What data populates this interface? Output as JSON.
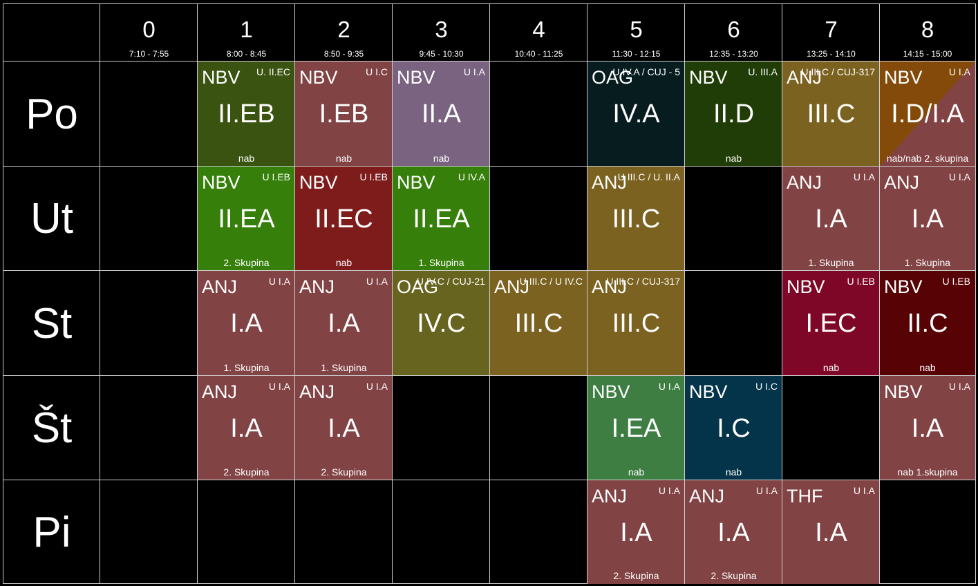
{
  "periods": [
    {
      "num": "0",
      "time": "7:10 - 7:55"
    },
    {
      "num": "1",
      "time": "8:00 - 8:45"
    },
    {
      "num": "2",
      "time": "8:50 - 9:35"
    },
    {
      "num": "3",
      "time": "9:45 - 10:30"
    },
    {
      "num": "4",
      "time": "10:40 - 11:25"
    },
    {
      "num": "5",
      "time": "11:30 - 12:15"
    },
    {
      "num": "6",
      "time": "12:35 - 13:20"
    },
    {
      "num": "7",
      "time": "13:25 - 14:10"
    },
    {
      "num": "8",
      "time": "14:15 - 15:00"
    }
  ],
  "days": [
    {
      "label": "Po",
      "lessons": [
        {
          "period": 1,
          "subject": "NBV",
          "room": "U. II.EC",
          "class": "II.EB",
          "note": "nab",
          "color": "#3a5310"
        },
        {
          "period": 2,
          "subject": "NBV",
          "room": "U I.C",
          "class": "I.EB",
          "note": "nab",
          "color": "#824345"
        },
        {
          "period": 3,
          "subject": "NBV",
          "room": "U I.A",
          "class": "II.A",
          "note": "nab",
          "color": "#7a6380"
        },
        {
          "period": 5,
          "subject": "OAG",
          "room": "U IV.A / CUJ - 5",
          "class": "IV.A",
          "note": "",
          "color": "#061c1f"
        },
        {
          "period": 6,
          "subject": "NBV",
          "room": "U. III.A",
          "class": "II.D",
          "note": "nab",
          "color": "#213d07"
        },
        {
          "period": 7,
          "subject": "ANJ",
          "room": "U III.C / CUJ-317",
          "class": "III.C",
          "note": "",
          "color": "#7b6220"
        },
        {
          "period": 8,
          "subject": "NBV",
          "room": "U I.A",
          "class": "I.D/I.A",
          "note": "nab/nab 2. skupina",
          "color": "#824345",
          "color2": "#834a0a"
        }
      ]
    },
    {
      "label": "Ut",
      "lessons": [
        {
          "period": 1,
          "subject": "NBV",
          "room": "U I.EB",
          "class": "II.EA",
          "note": "2. Skupina",
          "color": "#357f0a"
        },
        {
          "period": 2,
          "subject": "NBV",
          "room": "U I.EB",
          "class": "II.EC",
          "note": "nab",
          "color": "#7e1c1c"
        },
        {
          "period": 3,
          "subject": "NBV",
          "room": "U IV.A",
          "class": "II.EA",
          "note": "1. Skupina",
          "color": "#357f0a"
        },
        {
          "period": 5,
          "subject": "ANJ",
          "room": "U III.C / U. II.A",
          "class": "III.C",
          "note": "",
          "color": "#7b6220"
        },
        {
          "period": 7,
          "subject": "ANJ",
          "room": "U I.A",
          "class": "I.A",
          "note": "1. Skupina",
          "color": "#824345"
        },
        {
          "period": 8,
          "subject": "ANJ",
          "room": "U I.A",
          "class": "I.A",
          "note": "1. Skupina",
          "color": "#824345"
        }
      ]
    },
    {
      "label": "St",
      "lessons": [
        {
          "period": 1,
          "subject": "ANJ",
          "room": "U I.A",
          "class": "I.A",
          "note": "1. Skupina",
          "color": "#824345"
        },
        {
          "period": 2,
          "subject": "ANJ",
          "room": "U I.A",
          "class": "I.A",
          "note": "1. Skupina",
          "color": "#824345"
        },
        {
          "period": 3,
          "subject": "OAG",
          "room": "U IV.C / CUJ-21",
          "class": "IV.C",
          "note": "",
          "color": "#67641f"
        },
        {
          "period": 4,
          "subject": "ANJ",
          "room": "U III.C / U IV.C",
          "class": "III.C",
          "note": "",
          "color": "#7b6220"
        },
        {
          "period": 5,
          "subject": "ANJ",
          "room": "U III.C / CUJ-317",
          "class": "III.C",
          "note": "",
          "color": "#7b6220"
        },
        {
          "period": 7,
          "subject": "NBV",
          "room": "U I.EB",
          "class": "I.EC",
          "note": "nab",
          "color": "#7e0626"
        },
        {
          "period": 8,
          "subject": "NBV",
          "room": "U I.EB",
          "class": "II.C",
          "note": "nab",
          "color": "#570306"
        }
      ]
    },
    {
      "label": "Št",
      "lessons": [
        {
          "period": 1,
          "subject": "ANJ",
          "room": "U I.A",
          "class": "I.A",
          "note": "2. Skupina",
          "color": "#824345"
        },
        {
          "period": 2,
          "subject": "ANJ",
          "room": "U I.A",
          "class": "I.A",
          "note": "2. Skupina",
          "color": "#824345"
        },
        {
          "period": 5,
          "subject": "NBV",
          "room": "U I.A",
          "class": "I.EA",
          "note": "nab",
          "color": "#3e7e43"
        },
        {
          "period": 6,
          "subject": "NBV",
          "room": "U I.C",
          "class": "I.C",
          "note": "nab",
          "color": "#033449"
        },
        {
          "period": 8,
          "subject": "NBV",
          "room": "U I.A",
          "class": "I.A",
          "note": "nab 1.skupina",
          "color": "#824345"
        }
      ]
    },
    {
      "label": "Pi",
      "lessons": [
        {
          "period": 5,
          "subject": "ANJ",
          "room": "U I.A",
          "class": "I.A",
          "note": "2. Skupina",
          "color": "#824345"
        },
        {
          "period": 6,
          "subject": "ANJ",
          "room": "U I.A",
          "class": "I.A",
          "note": "2. Skupina",
          "color": "#824345"
        },
        {
          "period": 7,
          "subject": "THF",
          "room": "U I.A",
          "class": "I.A",
          "note": "",
          "color": "#824345"
        }
      ]
    }
  ]
}
